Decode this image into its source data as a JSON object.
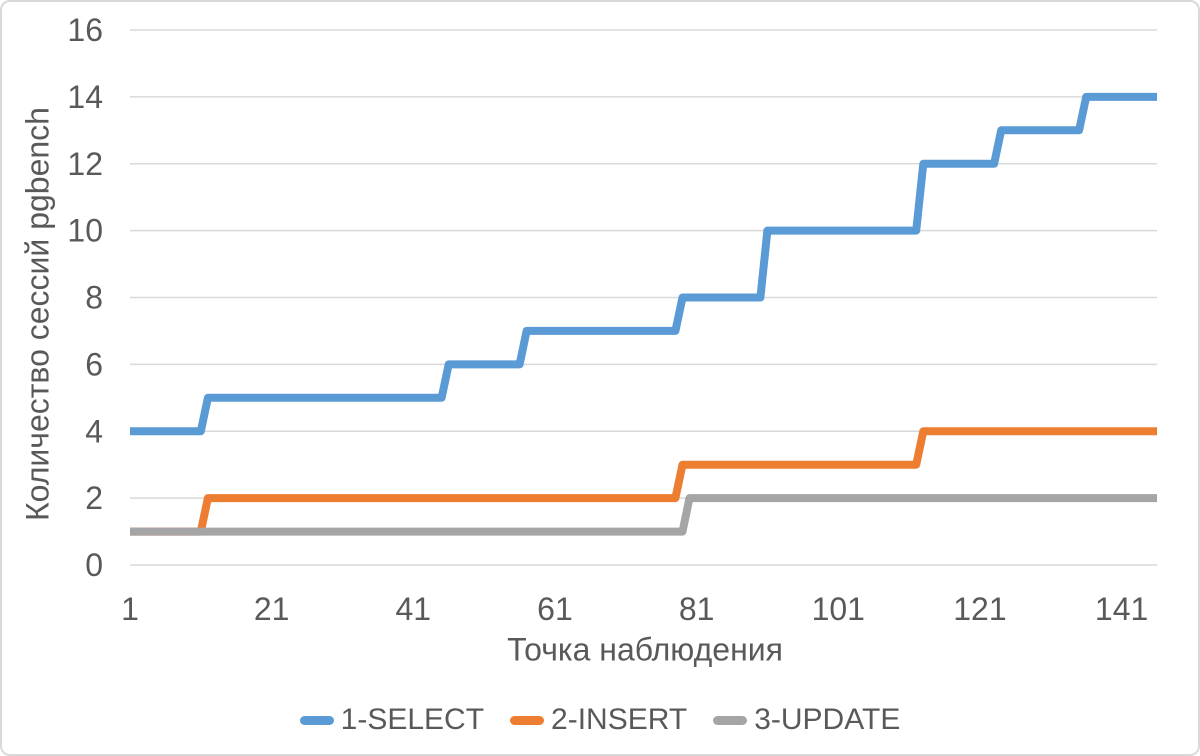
{
  "window": {
    "background": "#FFFFFF",
    "border_color": "#D9D9D9"
  },
  "chart_data": {
    "type": "line",
    "subtype": "step",
    "title": "",
    "xlabel": "Точка наблюдения",
    "ylabel": "Количество сессий pgbench",
    "xlim": [
      1,
      146
    ],
    "ylim": [
      0,
      16
    ],
    "x_ticks": [
      1,
      21,
      41,
      61,
      81,
      101,
      121,
      141
    ],
    "y_ticks": [
      0,
      2,
      4,
      6,
      8,
      10,
      12,
      14,
      16
    ],
    "grid": "horizontal",
    "gridline_color": "#D9D9D9",
    "text_color": "#595959",
    "legend_position": "bottom",
    "series": [
      {
        "name": "1-SELECT",
        "color": "#5B9BD5",
        "points": [
          [
            1,
            4
          ],
          [
            11,
            4
          ],
          [
            12,
            5
          ],
          [
            45,
            5
          ],
          [
            46,
            6
          ],
          [
            56,
            6
          ],
          [
            57,
            7
          ],
          [
            78,
            7
          ],
          [
            79,
            8
          ],
          [
            90,
            8
          ],
          [
            91,
            10
          ],
          [
            112,
            10
          ],
          [
            113,
            12
          ],
          [
            123,
            12
          ],
          [
            124,
            13
          ],
          [
            135,
            13
          ],
          [
            136,
            14
          ],
          [
            146,
            14
          ]
        ]
      },
      {
        "name": "2-INSERT",
        "color": "#ED7D31",
        "points": [
          [
            1,
            1
          ],
          [
            11,
            1
          ],
          [
            12,
            2
          ],
          [
            78,
            2
          ],
          [
            79,
            3
          ],
          [
            112,
            3
          ],
          [
            113,
            4
          ],
          [
            146,
            4
          ]
        ]
      },
      {
        "name": "3-UPDATE",
        "color": "#A5A5A5",
        "points": [
          [
            1,
            1
          ],
          [
            79,
            1
          ],
          [
            80,
            2
          ],
          [
            146,
            2
          ]
        ]
      }
    ]
  }
}
